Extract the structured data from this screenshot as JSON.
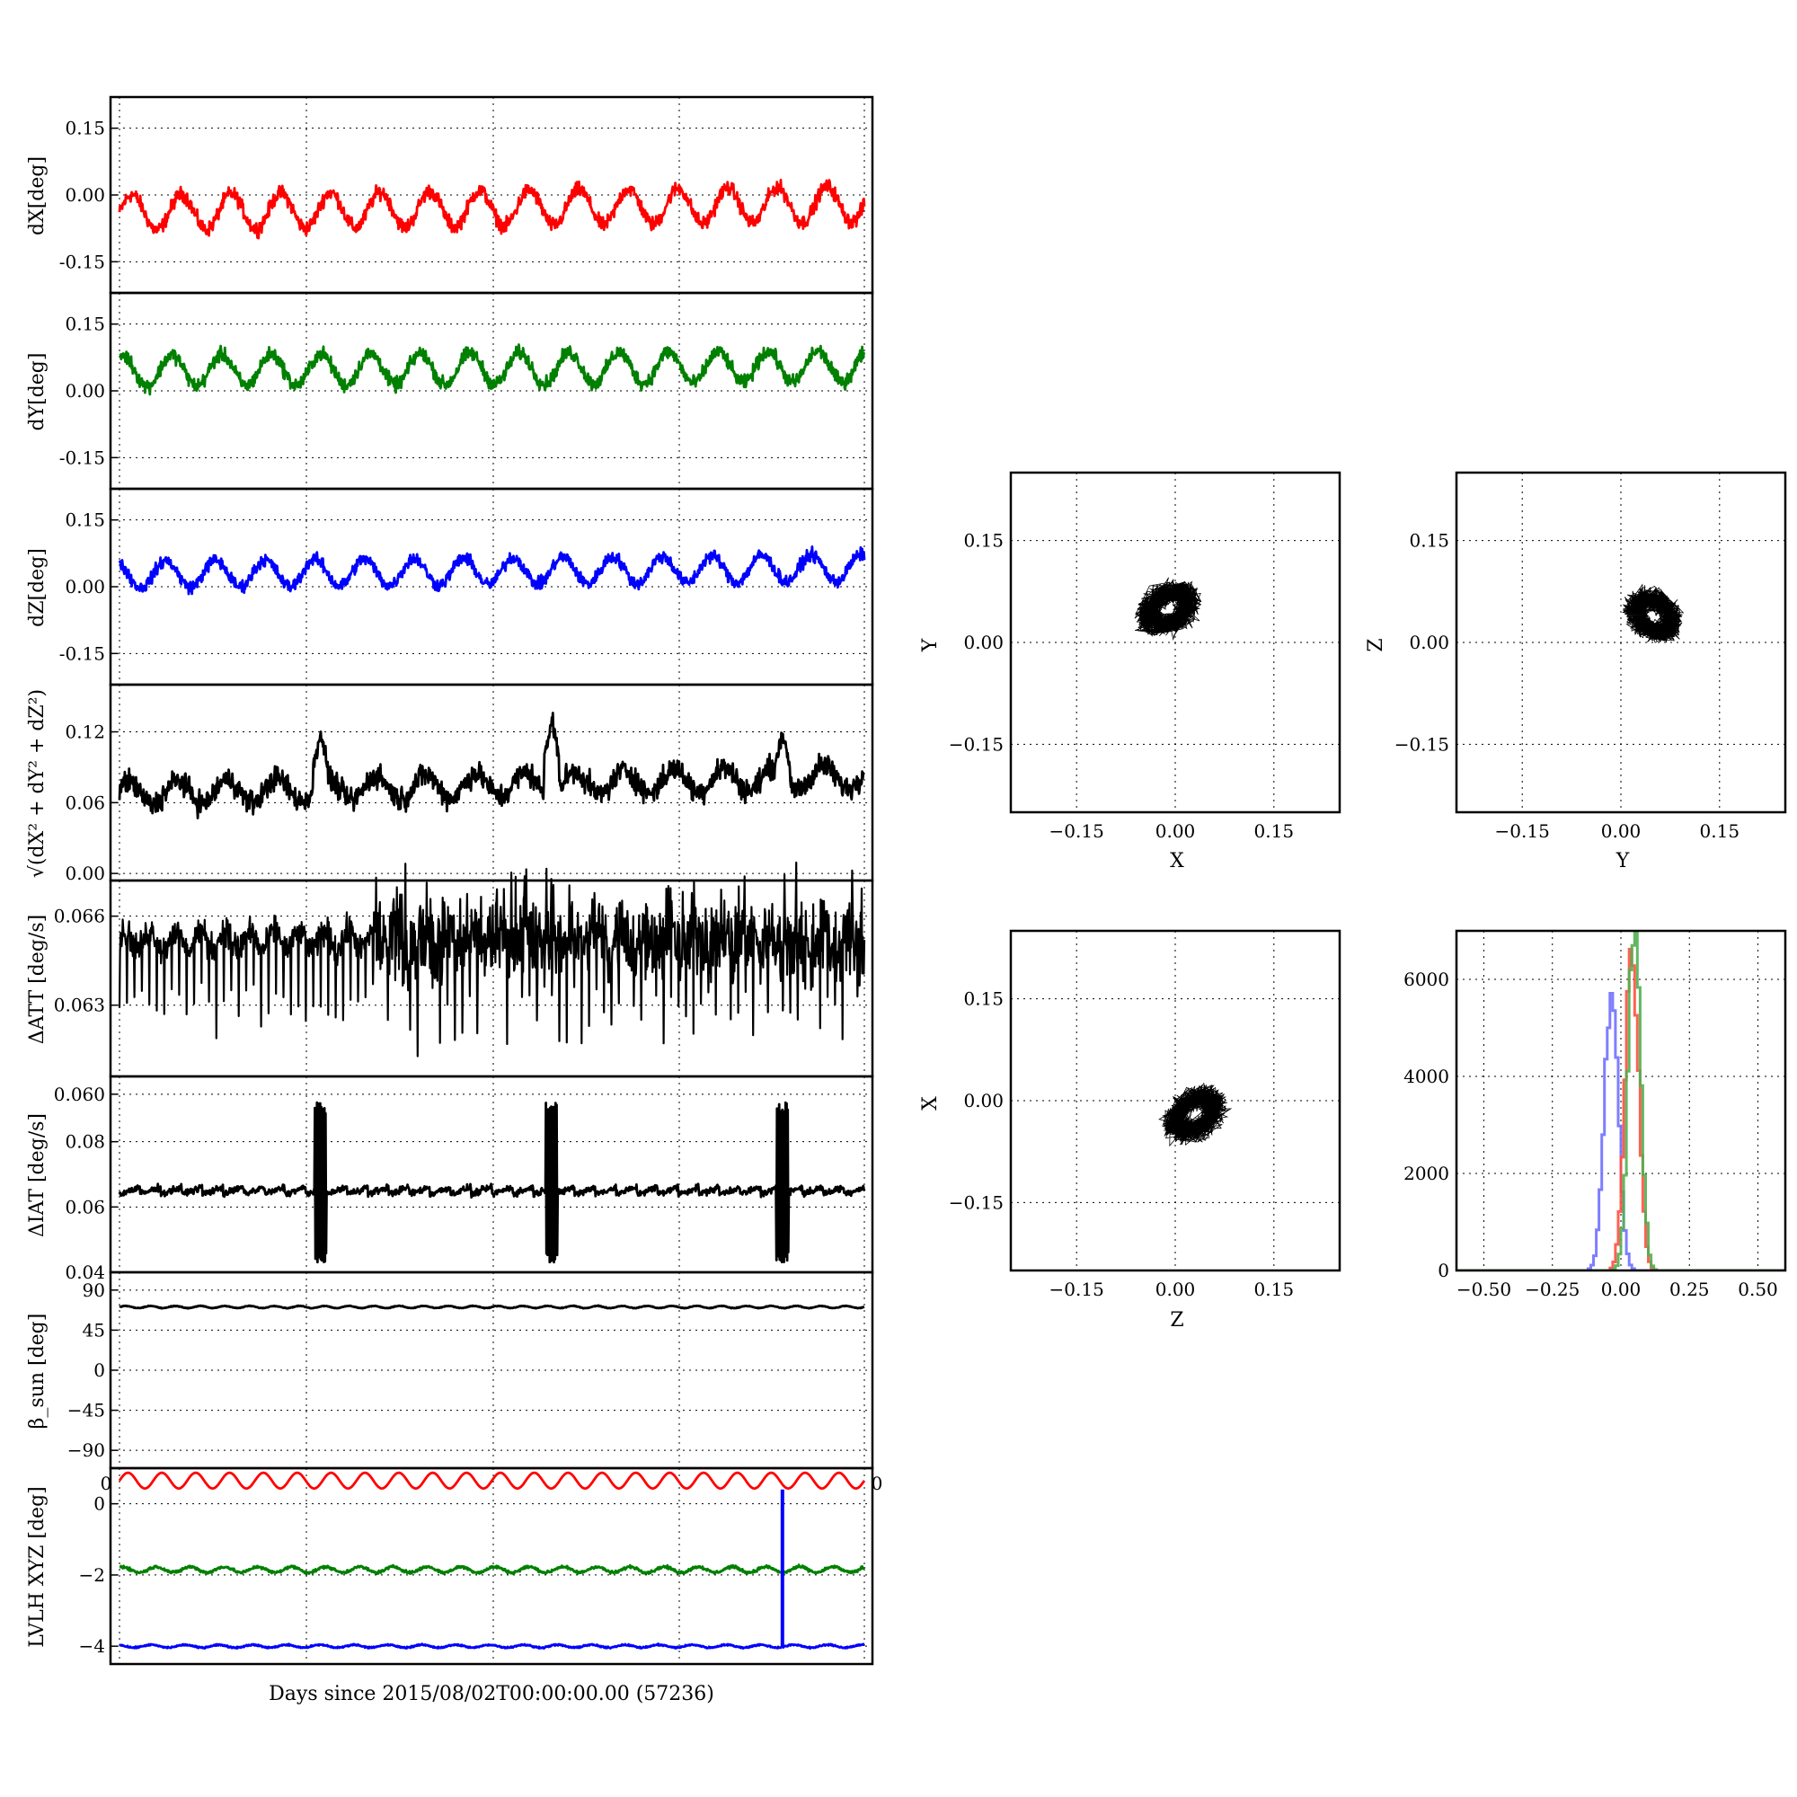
{
  "chart_data": [
    {
      "id": "dX",
      "type": "line",
      "ylabel": "dX[deg]",
      "ylim": [
        -0.22,
        0.22
      ],
      "yticks": [
        "0.15",
        "0.00",
        "-0.15"
      ],
      "ytick_values": [
        0.15,
        0.0,
        -0.15
      ],
      "series": [
        {
          "color": "#ff0000",
          "baseline": -0.03,
          "amplitude": 0.04,
          "cycles": 15,
          "noise": 0.008,
          "phase": 0.0,
          "trend": 0.02
        }
      ]
    },
    {
      "id": "dY",
      "type": "line",
      "ylabel": "dY[deg]",
      "ylim": [
        -0.22,
        0.22
      ],
      "yticks": [
        "0.15",
        "0.00",
        "-0.15"
      ],
      "ytick_values": [
        0.15,
        0.0,
        -0.15
      ],
      "series": [
        {
          "color": "#008000",
          "baseline": 0.05,
          "amplitude": 0.035,
          "cycles": 15,
          "noise": 0.008,
          "phase": 1.2,
          "trend": 0.01
        }
      ]
    },
    {
      "id": "dZ",
      "type": "line",
      "ylabel": "dZ[deg]",
      "ylim": [
        -0.22,
        0.22
      ],
      "yticks": [
        "0.15",
        "0.00",
        "-0.15"
      ],
      "ytick_values": [
        0.15,
        0.0,
        -0.15
      ],
      "series": [
        {
          "color": "#0000ff",
          "baseline": 0.035,
          "amplitude": 0.03,
          "cycles": 15,
          "noise": 0.007,
          "phase": 2.0,
          "trend": 0.015
        }
      ]
    },
    {
      "id": "norm",
      "type": "line",
      "ylabel": "√(dX² + dY² + dZ²)",
      "ylim": [
        -0.006,
        0.16
      ],
      "yticks": [
        "0.12",
        "0.06",
        "0.00"
      ],
      "ytick_values": [
        0.12,
        0.06,
        0.0
      ],
      "series": [
        {
          "color": "#000000",
          "baseline": 0.075,
          "amplitude": 0.01,
          "cycles": 15,
          "noise": 0.005,
          "phase": 0.5,
          "trend": 0.015,
          "spikes": [
            [
              0.27,
              0.12
            ],
            [
              0.58,
              0.13
            ],
            [
              0.89,
              0.12
            ]
          ]
        }
      ]
    },
    {
      "id": "datt",
      "type": "line",
      "ylabel": "ΔATT [deg/s]",
      "ylim": [
        0.0606,
        0.0672
      ],
      "yticks": [
        "0.066",
        "0.063",
        "0.060"
      ],
      "ytick_values": [
        0.066,
        0.063,
        0.06
      ],
      "series": [
        {
          "color": "#000000",
          "baseline": 0.0652,
          "kind": "datt"
        }
      ]
    },
    {
      "id": "diat",
      "type": "line",
      "ylabel": "ΔIAT [deg/s]",
      "ylim": [
        0.04,
        0.1
      ],
      "yticks": [
        "0.08",
        "0.06",
        "0.04"
      ],
      "ytick_values": [
        0.08,
        0.06,
        0.04
      ],
      "series": [
        {
          "color": "#000000",
          "baseline": 0.065,
          "kind": "diat",
          "bursts": [
            0.27,
            0.58,
            0.89
          ]
        }
      ]
    },
    {
      "id": "beta",
      "type": "line",
      "ylabel": "β_sun [deg]",
      "ylim": [
        -110,
        110
      ],
      "yticks": [
        "90",
        "45",
        "0",
        "−45",
        "−90"
      ],
      "ytick_values": [
        90,
        45,
        0,
        -45,
        -90
      ],
      "series": [
        {
          "color": "#000000",
          "baseline": 71,
          "amplitude": 1.2,
          "cycles": 30,
          "noise": 0.2,
          "phase": 0.0,
          "trend": 0
        }
      ]
    },
    {
      "id": "lvlh",
      "type": "line",
      "ylabel": "LVLH XYZ [deg]",
      "xlabel": "Days since 2015/08/02T00:00:00.00 (57236)",
      "ylim": [
        -4.5,
        1.0
      ],
      "yticks": [
        "0",
        "−2",
        "−4"
      ],
      "ytick_values": [
        0,
        -2,
        -4
      ],
      "corner_labels": [
        "0",
        "0"
      ],
      "series": [
        {
          "color": "#ff0000",
          "baseline": 0.65,
          "amplitude": 0.22,
          "cycles": 22,
          "noise": 0.0,
          "phase": 0.0,
          "trend": 0
        },
        {
          "color": "#008000",
          "baseline": -1.85,
          "amplitude": 0.08,
          "cycles": 22,
          "noise": 0.02,
          "phase": 1.0,
          "trend": 0
        },
        {
          "color": "#0000ff",
          "baseline": -4.0,
          "amplitude": 0.04,
          "cycles": 22,
          "noise": 0.01,
          "phase": 2.0,
          "trend": 0,
          "spike": [
            0.89,
            0.4
          ]
        }
      ]
    },
    {
      "id": "xy",
      "type": "scatter",
      "xlabel": "X",
      "ylabel": "Y",
      "xlim": [
        -0.25,
        0.25
      ],
      "ylim": [
        -0.25,
        0.25
      ],
      "xticks": [
        "−0.15",
        "0.00",
        "0.15"
      ],
      "yticks": [
        "0.15",
        "0.00",
        "−0.15"
      ],
      "tick_values": [
        -0.15,
        0.0,
        0.15
      ],
      "cloud": {
        "cx": -0.01,
        "cy": 0.05,
        "rx": 0.045,
        "ry": 0.03,
        "tilt": 0.5
      }
    },
    {
      "id": "yz",
      "type": "scatter",
      "xlabel": "Y",
      "ylabel": "Z",
      "xlim": [
        -0.25,
        0.25
      ],
      "ylim": [
        -0.25,
        0.25
      ],
      "xticks": [
        "−0.15",
        "0.00",
        "0.15"
      ],
      "yticks": [
        "0.15",
        "0.00",
        "−0.15"
      ],
      "tick_values": [
        -0.15,
        0.0,
        0.15
      ],
      "cloud": {
        "cx": 0.05,
        "cy": 0.04,
        "rx": 0.04,
        "ry": 0.03,
        "tilt": -0.6
      }
    },
    {
      "id": "zx",
      "type": "scatter",
      "xlabel": "Z",
      "ylabel": "X",
      "xlim": [
        -0.25,
        0.25
      ],
      "ylim": [
        -0.25,
        0.25
      ],
      "xticks": [
        "−0.15",
        "0.00",
        "0.15"
      ],
      "yticks": [
        "0.15",
        "0.00",
        "−0.15"
      ],
      "tick_values": [
        -0.15,
        0.0,
        0.15
      ],
      "cloud": {
        "cx": 0.03,
        "cy": -0.02,
        "rx": 0.045,
        "ry": 0.03,
        "tilt": 0.6
      }
    },
    {
      "id": "hist",
      "type": "histogram",
      "xlim": [
        -0.6,
        0.6
      ],
      "ylim": [
        0,
        7000
      ],
      "xticks": [
        "−0.50",
        "−0.25",
        "0.00",
        "0.25",
        "0.50"
      ],
      "xtick_values": [
        -0.5,
        -0.25,
        0.0,
        0.25,
        0.5
      ],
      "yticks": [
        "6000",
        "4000",
        "2000",
        "0"
      ],
      "ytick_values": [
        6000,
        4000,
        2000,
        0
      ],
      "series": [
        {
          "color": "#7070ff",
          "center": -0.035,
          "width": 0.025,
          "peak": 5800
        },
        {
          "color": "#ff5040",
          "center": 0.04,
          "width": 0.024,
          "peak": 6900
        },
        {
          "color": "#50b050",
          "center": 0.05,
          "width": 0.022,
          "peak": 7400
        }
      ]
    }
  ]
}
